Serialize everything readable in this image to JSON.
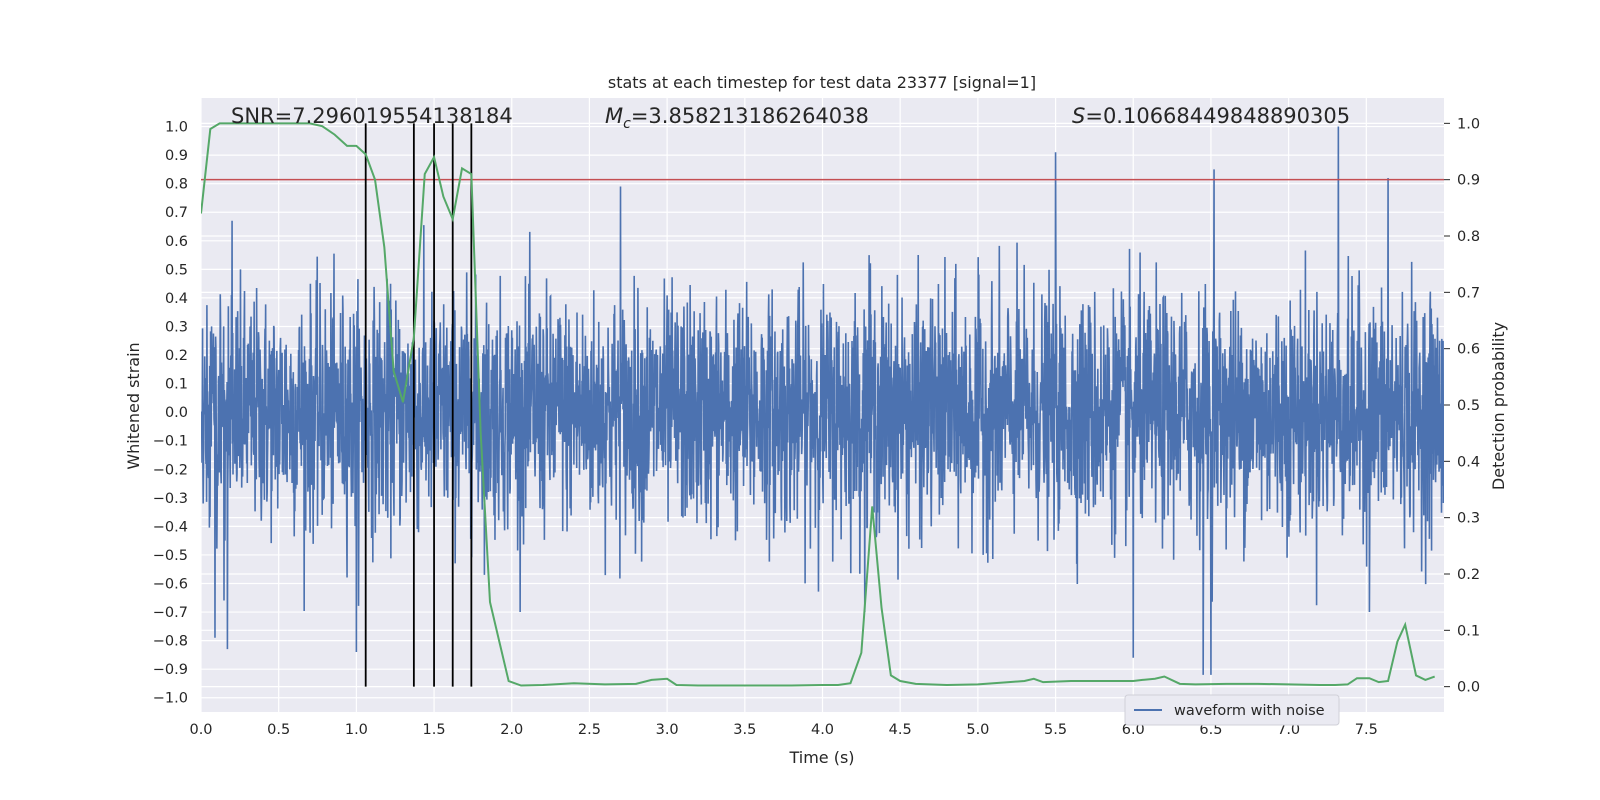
{
  "chart_data": {
    "type": "line",
    "title": "stats at each timestep for test data 23377 [signal=1]",
    "xlabel": "Time (s)",
    "ylabel": "Whitened strain",
    "y2label": "Detection probability",
    "xlim": [
      0.0,
      8.0
    ],
    "ylim": [
      -1.05,
      1.1
    ],
    "y2lim": [
      -0.045,
      1.045
    ],
    "xticks": [
      "0.0",
      "0.5",
      "1.0",
      "1.5",
      "2.0",
      "2.5",
      "3.0",
      "3.5",
      "4.0",
      "4.5",
      "5.0",
      "5.5",
      "6.0",
      "6.5",
      "7.0",
      "7.5"
    ],
    "yticks": [
      "-1.0",
      "-0.9",
      "-0.8",
      "-0.7",
      "-0.6",
      "-0.5",
      "-0.4",
      "-0.3",
      "-0.2",
      "-0.1",
      "0.0",
      "0.1",
      "0.2",
      "0.3",
      "0.4",
      "0.5",
      "0.6",
      "0.7",
      "0.8",
      "0.9",
      "1.0"
    ],
    "y2ticks": [
      "0.0",
      "0.1",
      "0.2",
      "0.3",
      "0.4",
      "0.5",
      "0.6",
      "0.7",
      "0.8",
      "0.9",
      "1.0"
    ],
    "annotations": {
      "snr": "SNR=7.296019554138184",
      "mc_symbol": "M",
      "mc_sub": "c",
      "mc_value": "=3.858213186264038",
      "s_symbol": "S",
      "s_value": "=0.10668449848890305"
    },
    "threshold": {
      "y2": 0.9,
      "color": "#c44e52"
    },
    "vertical_markers_x": [
      1.06,
      1.37,
      1.5,
      1.62,
      1.74
    ],
    "series": [
      {
        "name": "waveform with noise",
        "axis": "left",
        "color": "#4c72b0",
        "kind": "noise",
        "envelope_typical": [
          -0.4,
          0.4
        ],
        "spikes": [
          {
            "x": 0.09,
            "y": -0.79
          },
          {
            "x": 0.17,
            "y": -0.83
          },
          {
            "x": 0.2,
            "y": 0.67
          },
          {
            "x": 1.0,
            "y": -0.84
          },
          {
            "x": 2.7,
            "y": 0.79
          },
          {
            "x": 4.3,
            "y": 0.55
          },
          {
            "x": 5.5,
            "y": 0.91
          },
          {
            "x": 6.0,
            "y": -0.86
          },
          {
            "x": 6.45,
            "y": -0.92
          },
          {
            "x": 6.5,
            "y": -0.92
          },
          {
            "x": 6.52,
            "y": 0.85
          },
          {
            "x": 7.32,
            "y": 1.0
          },
          {
            "x": 7.52,
            "y": -0.7
          },
          {
            "x": 7.64,
            "y": 0.82
          }
        ]
      },
      {
        "name": "detection probability",
        "axis": "right",
        "color": "#55a868",
        "x": [
          0.0,
          0.06,
          0.12,
          0.2,
          0.3,
          0.4,
          0.5,
          0.6,
          0.7,
          0.78,
          0.86,
          0.94,
          1.0,
          1.06,
          1.12,
          1.18,
          1.24,
          1.3,
          1.37,
          1.44,
          1.5,
          1.56,
          1.62,
          1.68,
          1.74,
          1.8,
          1.86,
          1.92,
          1.98,
          2.06,
          2.2,
          2.4,
          2.6,
          2.8,
          2.9,
          3.0,
          3.06,
          3.2,
          3.4,
          3.6,
          3.8,
          4.0,
          4.1,
          4.18,
          4.25,
          4.32,
          4.38,
          4.44,
          4.5,
          4.6,
          4.8,
          5.0,
          5.2,
          5.3,
          5.36,
          5.42,
          5.6,
          5.8,
          6.0,
          6.06,
          6.14,
          6.2,
          6.3,
          6.4,
          6.6,
          6.8,
          7.0,
          7.2,
          7.3,
          7.38,
          7.44,
          7.52,
          7.58,
          7.64,
          7.7,
          7.75,
          7.82,
          7.88,
          7.94
        ],
        "y": [
          0.84,
          0.99,
          1.0,
          1.0,
          1.0,
          1.0,
          1.0,
          1.0,
          1.0,
          0.995,
          0.98,
          0.96,
          0.96,
          0.945,
          0.9,
          0.78,
          0.56,
          0.505,
          0.62,
          0.91,
          0.94,
          0.87,
          0.83,
          0.92,
          0.91,
          0.45,
          0.15,
          0.08,
          0.01,
          0.002,
          0.003,
          0.006,
          0.004,
          0.005,
          0.012,
          0.014,
          0.003,
          0.002,
          0.002,
          0.002,
          0.002,
          0.003,
          0.003,
          0.006,
          0.06,
          0.32,
          0.14,
          0.02,
          0.01,
          0.005,
          0.003,
          0.004,
          0.008,
          0.01,
          0.014,
          0.008,
          0.01,
          0.01,
          0.01,
          0.012,
          0.014,
          0.018,
          0.005,
          0.004,
          0.005,
          0.005,
          0.004,
          0.003,
          0.003,
          0.004,
          0.015,
          0.015,
          0.008,
          0.01,
          0.08,
          0.11,
          0.02,
          0.012,
          0.018
        ]
      }
    ],
    "legend": {
      "placement": "lower-right",
      "entries": [
        "waveform with noise"
      ]
    }
  }
}
